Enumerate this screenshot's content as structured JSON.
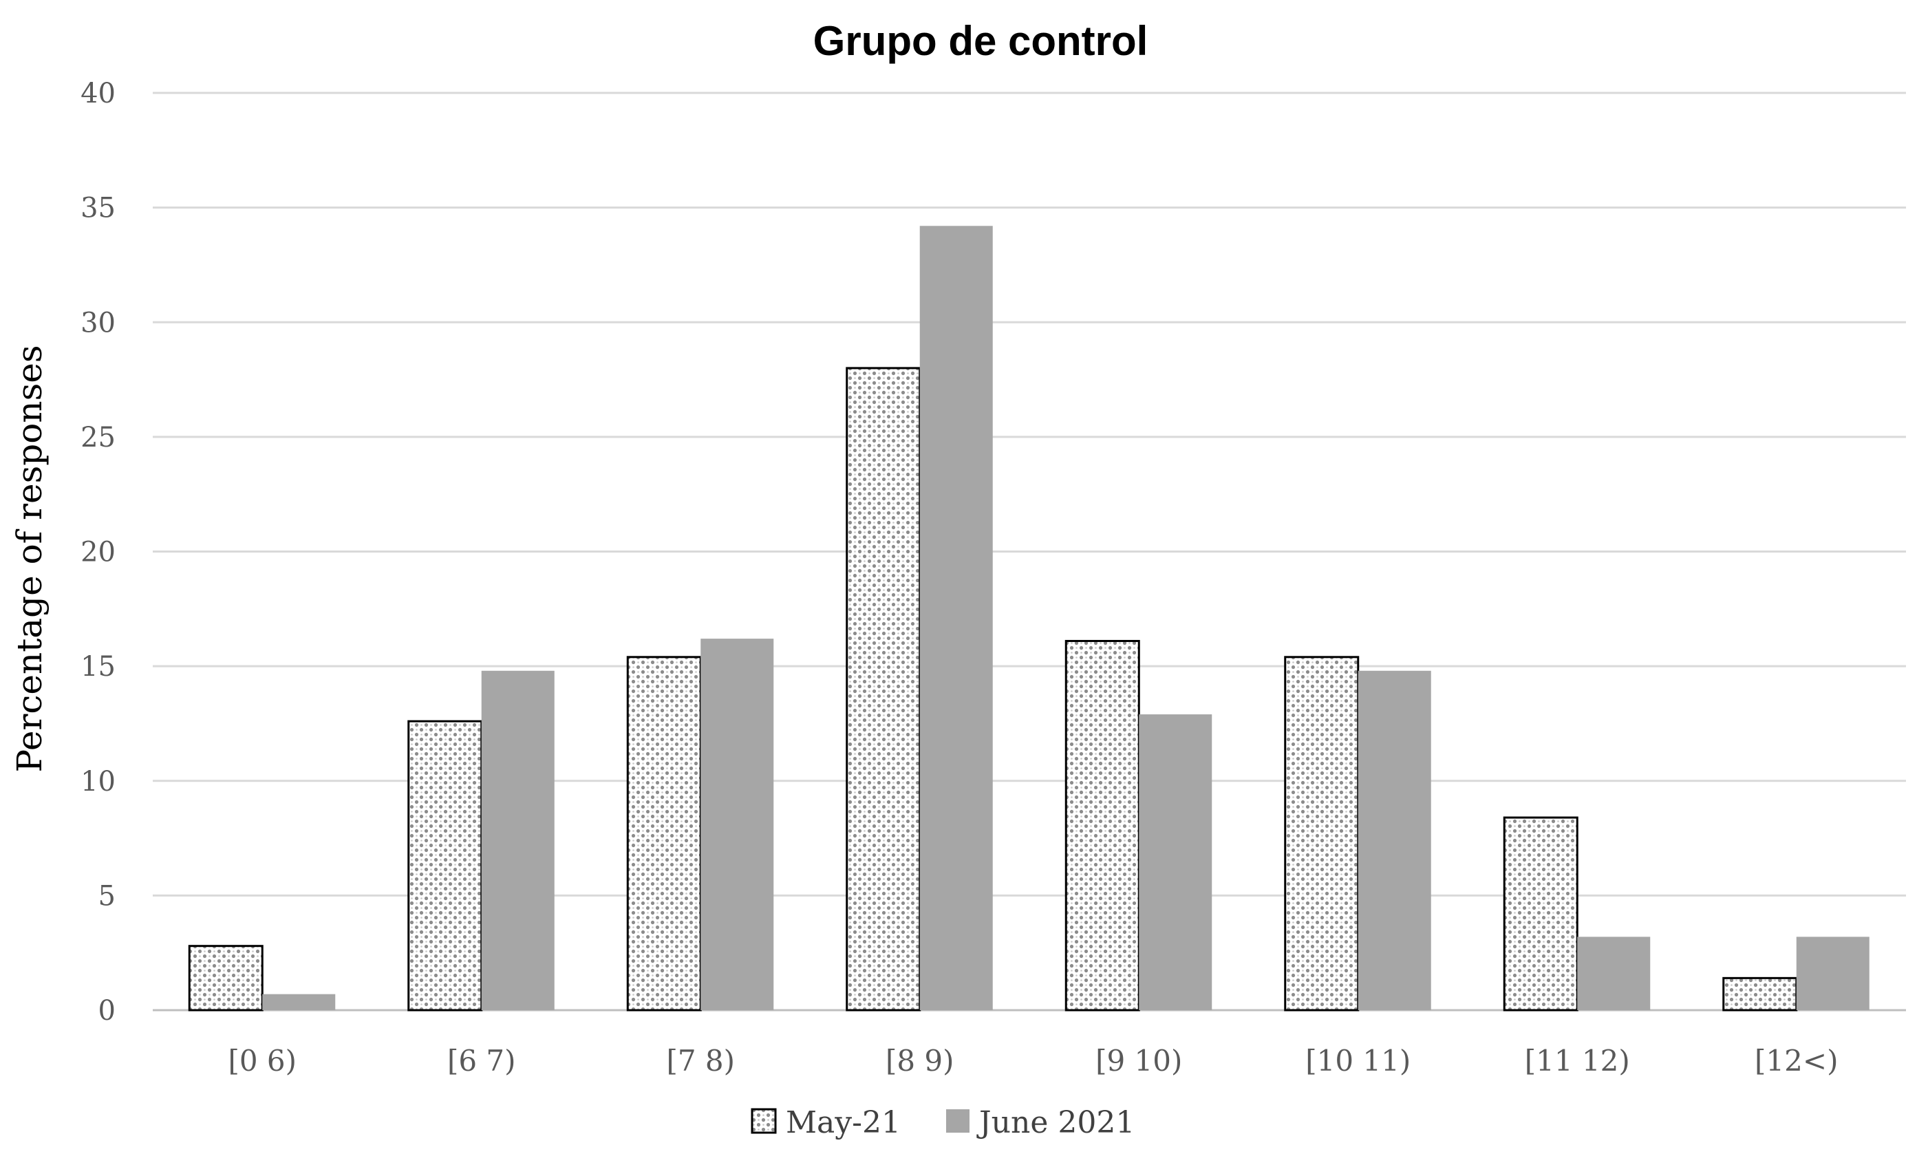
{
  "chart_data": {
    "type": "bar",
    "title": "Grupo de control",
    "xlabel": "",
    "ylabel": "Percentage of responses",
    "ylim": [
      0,
      40
    ],
    "yticks": [
      0,
      5,
      10,
      15,
      20,
      25,
      30,
      35,
      40
    ],
    "categories": [
      "[0 6)",
      "[6 7)",
      "[7 8)",
      "[8 9)",
      "[9 10)",
      "[10 11)",
      "[11 12)",
      "[12<)"
    ],
    "series": [
      {
        "name": "May-21",
        "values": [
          2.8,
          12.6,
          15.4,
          28.0,
          16.1,
          15.4,
          8.4,
          1.4
        ],
        "pattern": "dotted-hatch",
        "color": "#ffffff"
      },
      {
        "name": "June 2021",
        "values": [
          0.7,
          14.8,
          16.2,
          34.2,
          12.9,
          14.8,
          3.2,
          3.2
        ],
        "color": "#a6a6a6"
      }
    ],
    "grid": true,
    "legend_position": "bottom"
  }
}
